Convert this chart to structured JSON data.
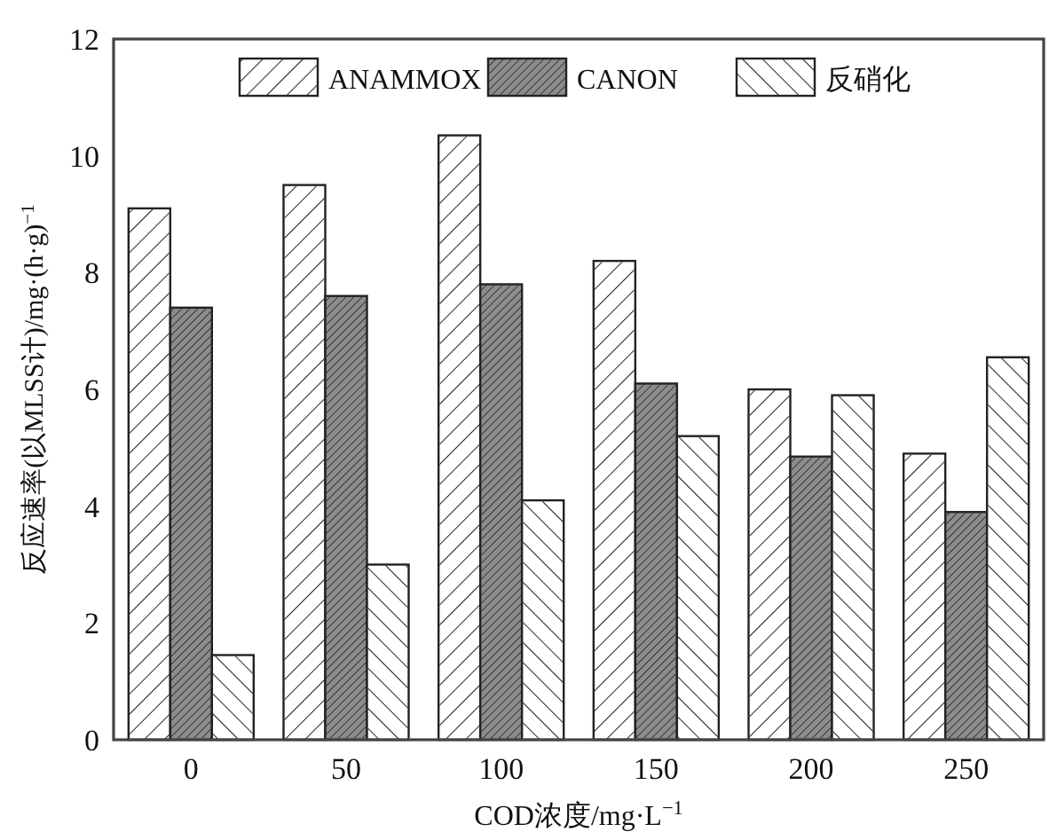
{
  "chart_data": {
    "type": "bar",
    "xlabel": "COD浓度/mg·L$^{−1}$",
    "ylabel": "反应速率(以MLSS计)/mg·(h·g)$^{−1}$",
    "categories": [
      "0",
      "50",
      "100",
      "150",
      "200",
      "250"
    ],
    "series": [
      {
        "name": "ANAMMOX",
        "color": "#ffffff",
        "values": [
          9.1,
          9.5,
          10.35,
          8.2,
          6.0,
          4.9
        ]
      },
      {
        "name": "CANON",
        "color": "#8c8c8c",
        "values": [
          7.4,
          7.6,
          7.8,
          6.1,
          4.85,
          3.9
        ]
      },
      {
        "name": "反硝化",
        "color": "#ffffff",
        "values": [
          1.45,
          3.0,
          4.1,
          5.2,
          5.9,
          6.55
        ]
      }
    ],
    "ylim": [
      0,
      12
    ],
    "yticks": [
      0,
      2,
      4,
      6,
      8,
      10,
      12
    ],
    "grid": false,
    "legend": "top"
  }
}
